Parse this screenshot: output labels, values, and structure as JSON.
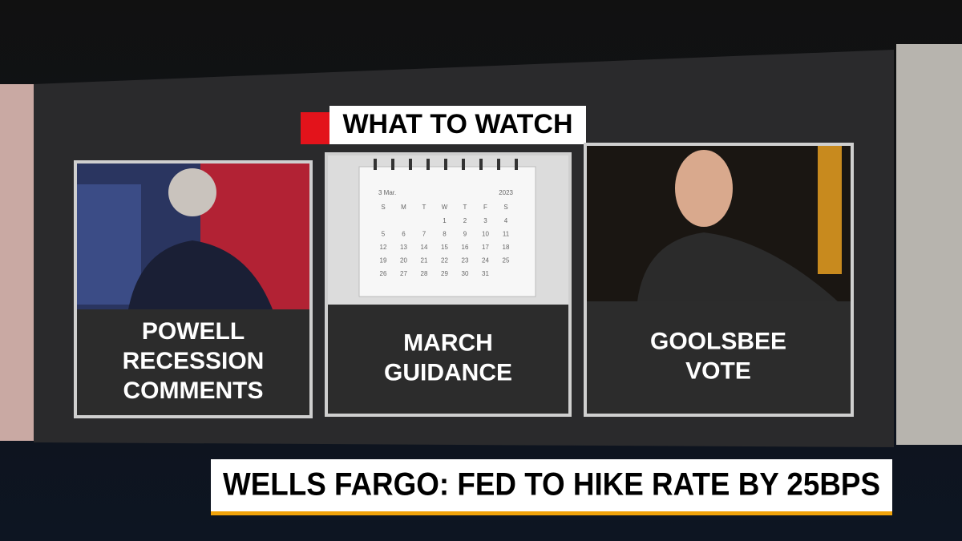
{
  "banner": {
    "title": "WHAT TO WATCH"
  },
  "panels": [
    {
      "lines": [
        "POWELL",
        "RECESSION",
        "COMMENTS"
      ]
    },
    {
      "lines": [
        "MARCH",
        "GUIDANCE"
      ]
    },
    {
      "lines": [
        "GOOLSBEE",
        "VOTE"
      ]
    }
  ],
  "calendar": {
    "month": "3 Mar.",
    "year": "2023",
    "weekdays": [
      "S",
      "M",
      "T",
      "W",
      "T",
      "F",
      "S"
    ],
    "weeks": [
      [
        null,
        null,
        null,
        1,
        2,
        3,
        4
      ],
      [
        5,
        6,
        7,
        8,
        9,
        10,
        11
      ],
      [
        12,
        13,
        14,
        15,
        16,
        17,
        18
      ],
      [
        19,
        20,
        21,
        22,
        23,
        24,
        25
      ],
      [
        26,
        27,
        28,
        29,
        30,
        31,
        null
      ]
    ]
  },
  "ticker": {
    "headline": "WELLS FARGO: FED TO HIKE RATE BY 25BPS"
  }
}
